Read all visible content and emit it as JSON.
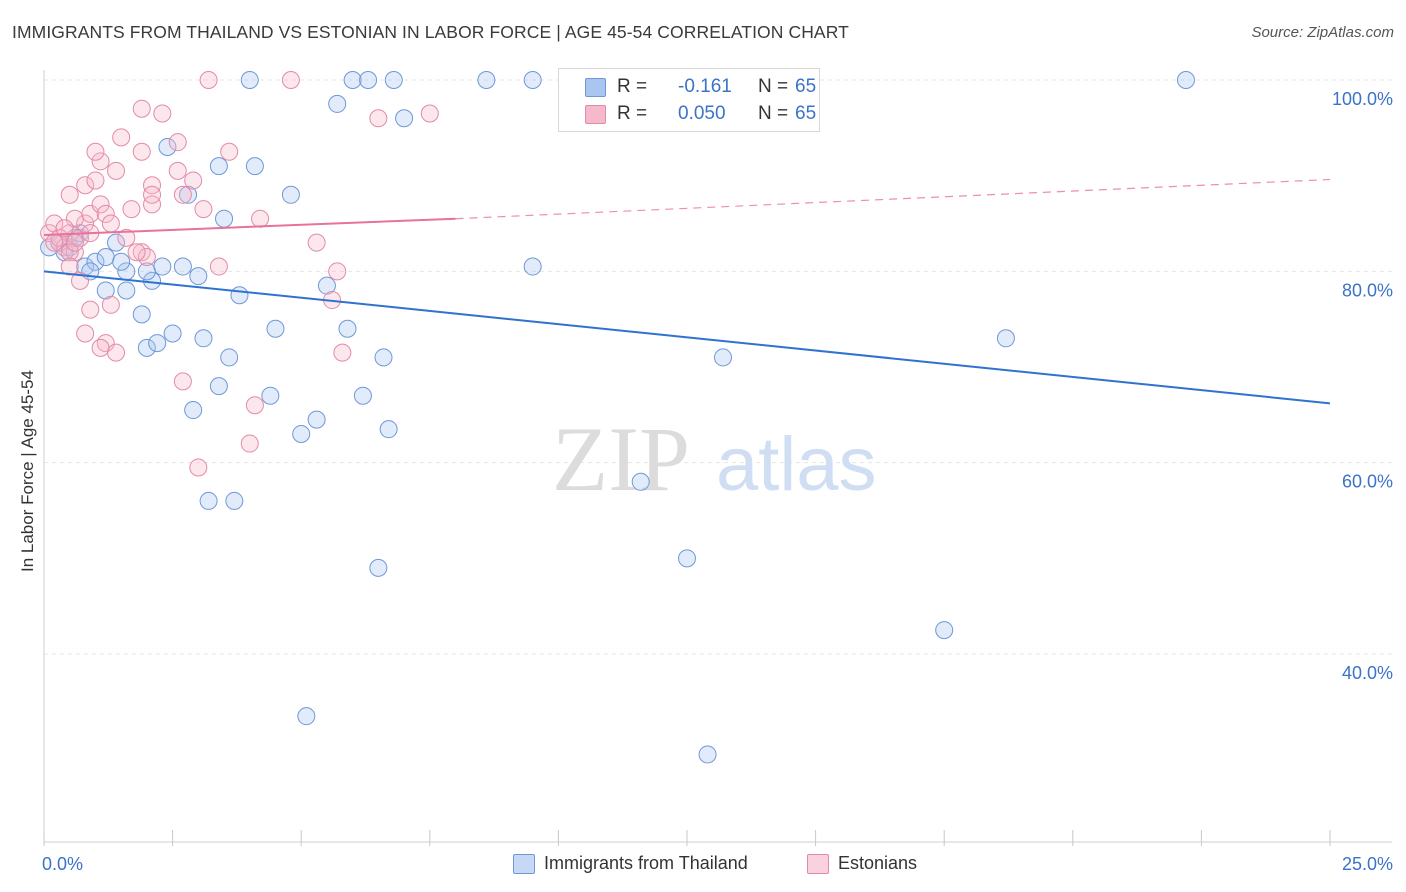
{
  "title": "IMMIGRANTS FROM THAILAND VS ESTONIAN IN LABOR FORCE | AGE 45-54 CORRELATION CHART",
  "source": "Source: ZipAtlas.com",
  "watermark": {
    "zip": "ZIP",
    "atlas": "atlas"
  },
  "stats_box": {
    "rows": [
      {
        "r_label": "R =",
        "r_value": "-0.161",
        "n_label": "N =",
        "n_value": "65",
        "fill": "#a9c6f0",
        "stroke": "#6e98d8"
      },
      {
        "r_label": "R =",
        "r_value": "0.050",
        "n_label": "N =",
        "n_value": "65",
        "fill": "#f5b9cc",
        "stroke": "#e48aa8"
      }
    ]
  },
  "legend": [
    {
      "label": "Immigrants from Thailand",
      "fill": "#a9c6f0",
      "stroke": "#6e98d8"
    },
    {
      "label": "Estonians",
      "fill": "#f5b9cc",
      "stroke": "#e48aa8"
    }
  ],
  "colors": {
    "blue_line": "#2f72d0",
    "pink_line": "#e8729a",
    "tick_label": "#3b73c8",
    "grid": "#e5e5e5"
  },
  "chart_data": {
    "type": "scatter",
    "title": "IMMIGRANTS FROM THAILAND VS ESTONIAN IN LABOR FORCE | AGE 45-54 CORRELATION CHART",
    "xlabel": "",
    "ylabel": "In Labor Force | Age 45-54",
    "xlim": [
      0,
      25
    ],
    "ylim": [
      20,
      103
    ],
    "x_tick_labels": [
      {
        "value": 0,
        "label": "0.0%"
      },
      {
        "value": 25,
        "label": "25.0%"
      }
    ],
    "y_tick_labels": [
      {
        "value": 40,
        "label": "40.0%"
      },
      {
        "value": 60,
        "label": "60.0%"
      },
      {
        "value": 80,
        "label": "80.0%"
      },
      {
        "value": 100,
        "label": "100.0%"
      }
    ],
    "grid": "horizontal-dashed",
    "legend_position": "bottom-center",
    "series": [
      {
        "name": "Immigrants from Thailand",
        "points": [
          [
            0.1,
            82.5
          ],
          [
            0.3,
            83.0
          ],
          [
            0.5,
            82.5
          ],
          [
            0.6,
            83.5
          ],
          [
            0.8,
            80.5
          ],
          [
            1.0,
            81.0
          ],
          [
            1.2,
            81.5
          ],
          [
            0.9,
            80.0
          ],
          [
            1.4,
            83.0
          ],
          [
            1.6,
            80.0
          ],
          [
            1.2,
            78.0
          ],
          [
            1.6,
            78.0
          ],
          [
            1.9,
            75.5
          ],
          [
            2.1,
            79.0
          ],
          [
            2.3,
            80.5
          ],
          [
            2.7,
            80.5
          ],
          [
            3.0,
            79.5
          ],
          [
            2.0,
            72.0
          ],
          [
            2.2,
            72.5
          ],
          [
            2.5,
            73.5
          ],
          [
            3.1,
            73.0
          ],
          [
            3.4,
            68.0
          ],
          [
            3.6,
            71.0
          ],
          [
            2.9,
            65.5
          ],
          [
            3.8,
            77.5
          ],
          [
            4.5,
            74.0
          ],
          [
            4.4,
            67.0
          ],
          [
            5.0,
            63.0
          ],
          [
            5.3,
            64.5
          ],
          [
            5.5,
            78.5
          ],
          [
            5.9,
            74.0
          ],
          [
            6.2,
            67.0
          ],
          [
            6.6,
            71.0
          ],
          [
            6.7,
            63.5
          ],
          [
            3.2,
            56.0
          ],
          [
            3.7,
            56.0
          ],
          [
            6.5,
            49.0
          ],
          [
            5.1,
            33.5
          ],
          [
            3.4,
            91.0
          ],
          [
            4.1,
            91.0
          ],
          [
            2.8,
            88.0
          ],
          [
            4.8,
            88.0
          ],
          [
            3.5,
            85.5
          ],
          [
            2.4,
            93.0
          ],
          [
            5.7,
            97.5
          ],
          [
            7.0,
            96.0
          ],
          [
            4.0,
            100.0
          ],
          [
            6.0,
            100.0
          ],
          [
            6.3,
            100.0
          ],
          [
            6.8,
            100.0
          ],
          [
            8.6,
            100.0
          ],
          [
            9.5,
            100.0
          ],
          [
            11.2,
            100.0
          ],
          [
            22.2,
            100.0
          ],
          [
            9.5,
            80.5
          ],
          [
            13.2,
            71.0
          ],
          [
            18.7,
            73.0
          ],
          [
            11.6,
            58.0
          ],
          [
            12.5,
            50.0
          ],
          [
            17.5,
            42.5
          ],
          [
            12.9,
            29.5
          ],
          [
            0.4,
            82.0
          ],
          [
            1.5,
            81.0
          ],
          [
            2.0,
            80.0
          ],
          [
            0.7,
            84.0
          ]
        ]
      },
      {
        "name": "Estonians",
        "points": [
          [
            0.1,
            84.0
          ],
          [
            0.2,
            85.0
          ],
          [
            0.3,
            83.0
          ],
          [
            0.4,
            82.5
          ],
          [
            0.5,
            84.0
          ],
          [
            0.6,
            82.0
          ],
          [
            0.7,
            83.5
          ],
          [
            0.8,
            85.0
          ],
          [
            0.6,
            85.5
          ],
          [
            0.9,
            86.0
          ],
          [
            1.1,
            87.0
          ],
          [
            1.2,
            86.0
          ],
          [
            0.5,
            88.0
          ],
          [
            0.8,
            89.0
          ],
          [
            1.0,
            89.5
          ],
          [
            1.4,
            90.5
          ],
          [
            1.1,
            91.5
          ],
          [
            1.0,
            92.5
          ],
          [
            1.5,
            94.0
          ],
          [
            1.9,
            92.5
          ],
          [
            2.1,
            89.0
          ],
          [
            2.1,
            87.0
          ],
          [
            2.3,
            96.5
          ],
          [
            1.9,
            97.0
          ],
          [
            2.6,
            93.5
          ],
          [
            2.6,
            90.5
          ],
          [
            2.9,
            89.5
          ],
          [
            2.7,
            88.0
          ],
          [
            3.1,
            86.5
          ],
          [
            3.6,
            92.5
          ],
          [
            4.2,
            85.5
          ],
          [
            0.7,
            79.0
          ],
          [
            0.9,
            76.0
          ],
          [
            1.3,
            76.5
          ],
          [
            0.8,
            73.5
          ],
          [
            1.2,
            72.5
          ],
          [
            1.1,
            72.0
          ],
          [
            1.4,
            71.5
          ],
          [
            1.9,
            82.0
          ],
          [
            2.0,
            81.5
          ],
          [
            2.7,
            68.5
          ],
          [
            4.1,
            66.0
          ],
          [
            3.4,
            80.5
          ],
          [
            4.0,
            62.0
          ],
          [
            3.0,
            59.5
          ],
          [
            5.3,
            83.0
          ],
          [
            5.6,
            77.0
          ],
          [
            5.7,
            80.0
          ],
          [
            5.8,
            71.5
          ],
          [
            3.2,
            100.0
          ],
          [
            4.8,
            100.0
          ],
          [
            6.5,
            96.0
          ],
          [
            7.5,
            96.5
          ],
          [
            0.3,
            83.5
          ],
          [
            0.4,
            84.5
          ],
          [
            0.5,
            82.0
          ],
          [
            0.6,
            83.0
          ],
          [
            0.2,
            83.0
          ],
          [
            0.9,
            84.0
          ],
          [
            1.3,
            85.0
          ],
          [
            2.1,
            88.0
          ],
          [
            1.7,
            86.5
          ],
          [
            1.6,
            83.5
          ],
          [
            0.5,
            80.5
          ],
          [
            1.8,
            82.0
          ]
        ]
      }
    ],
    "trend_lines": [
      {
        "series": "Immigrants from Thailand",
        "x0": 0,
        "y0": 80.0,
        "x1": 25,
        "y1": 66.2,
        "style": "solid"
      },
      {
        "series": "Estonians",
        "x0": 0,
        "y0": 83.8,
        "x1": 8.0,
        "y1": 85.5,
        "style": "solid",
        "dashed_to_x": 25,
        "dashed_to_y": 89.6
      }
    ]
  }
}
